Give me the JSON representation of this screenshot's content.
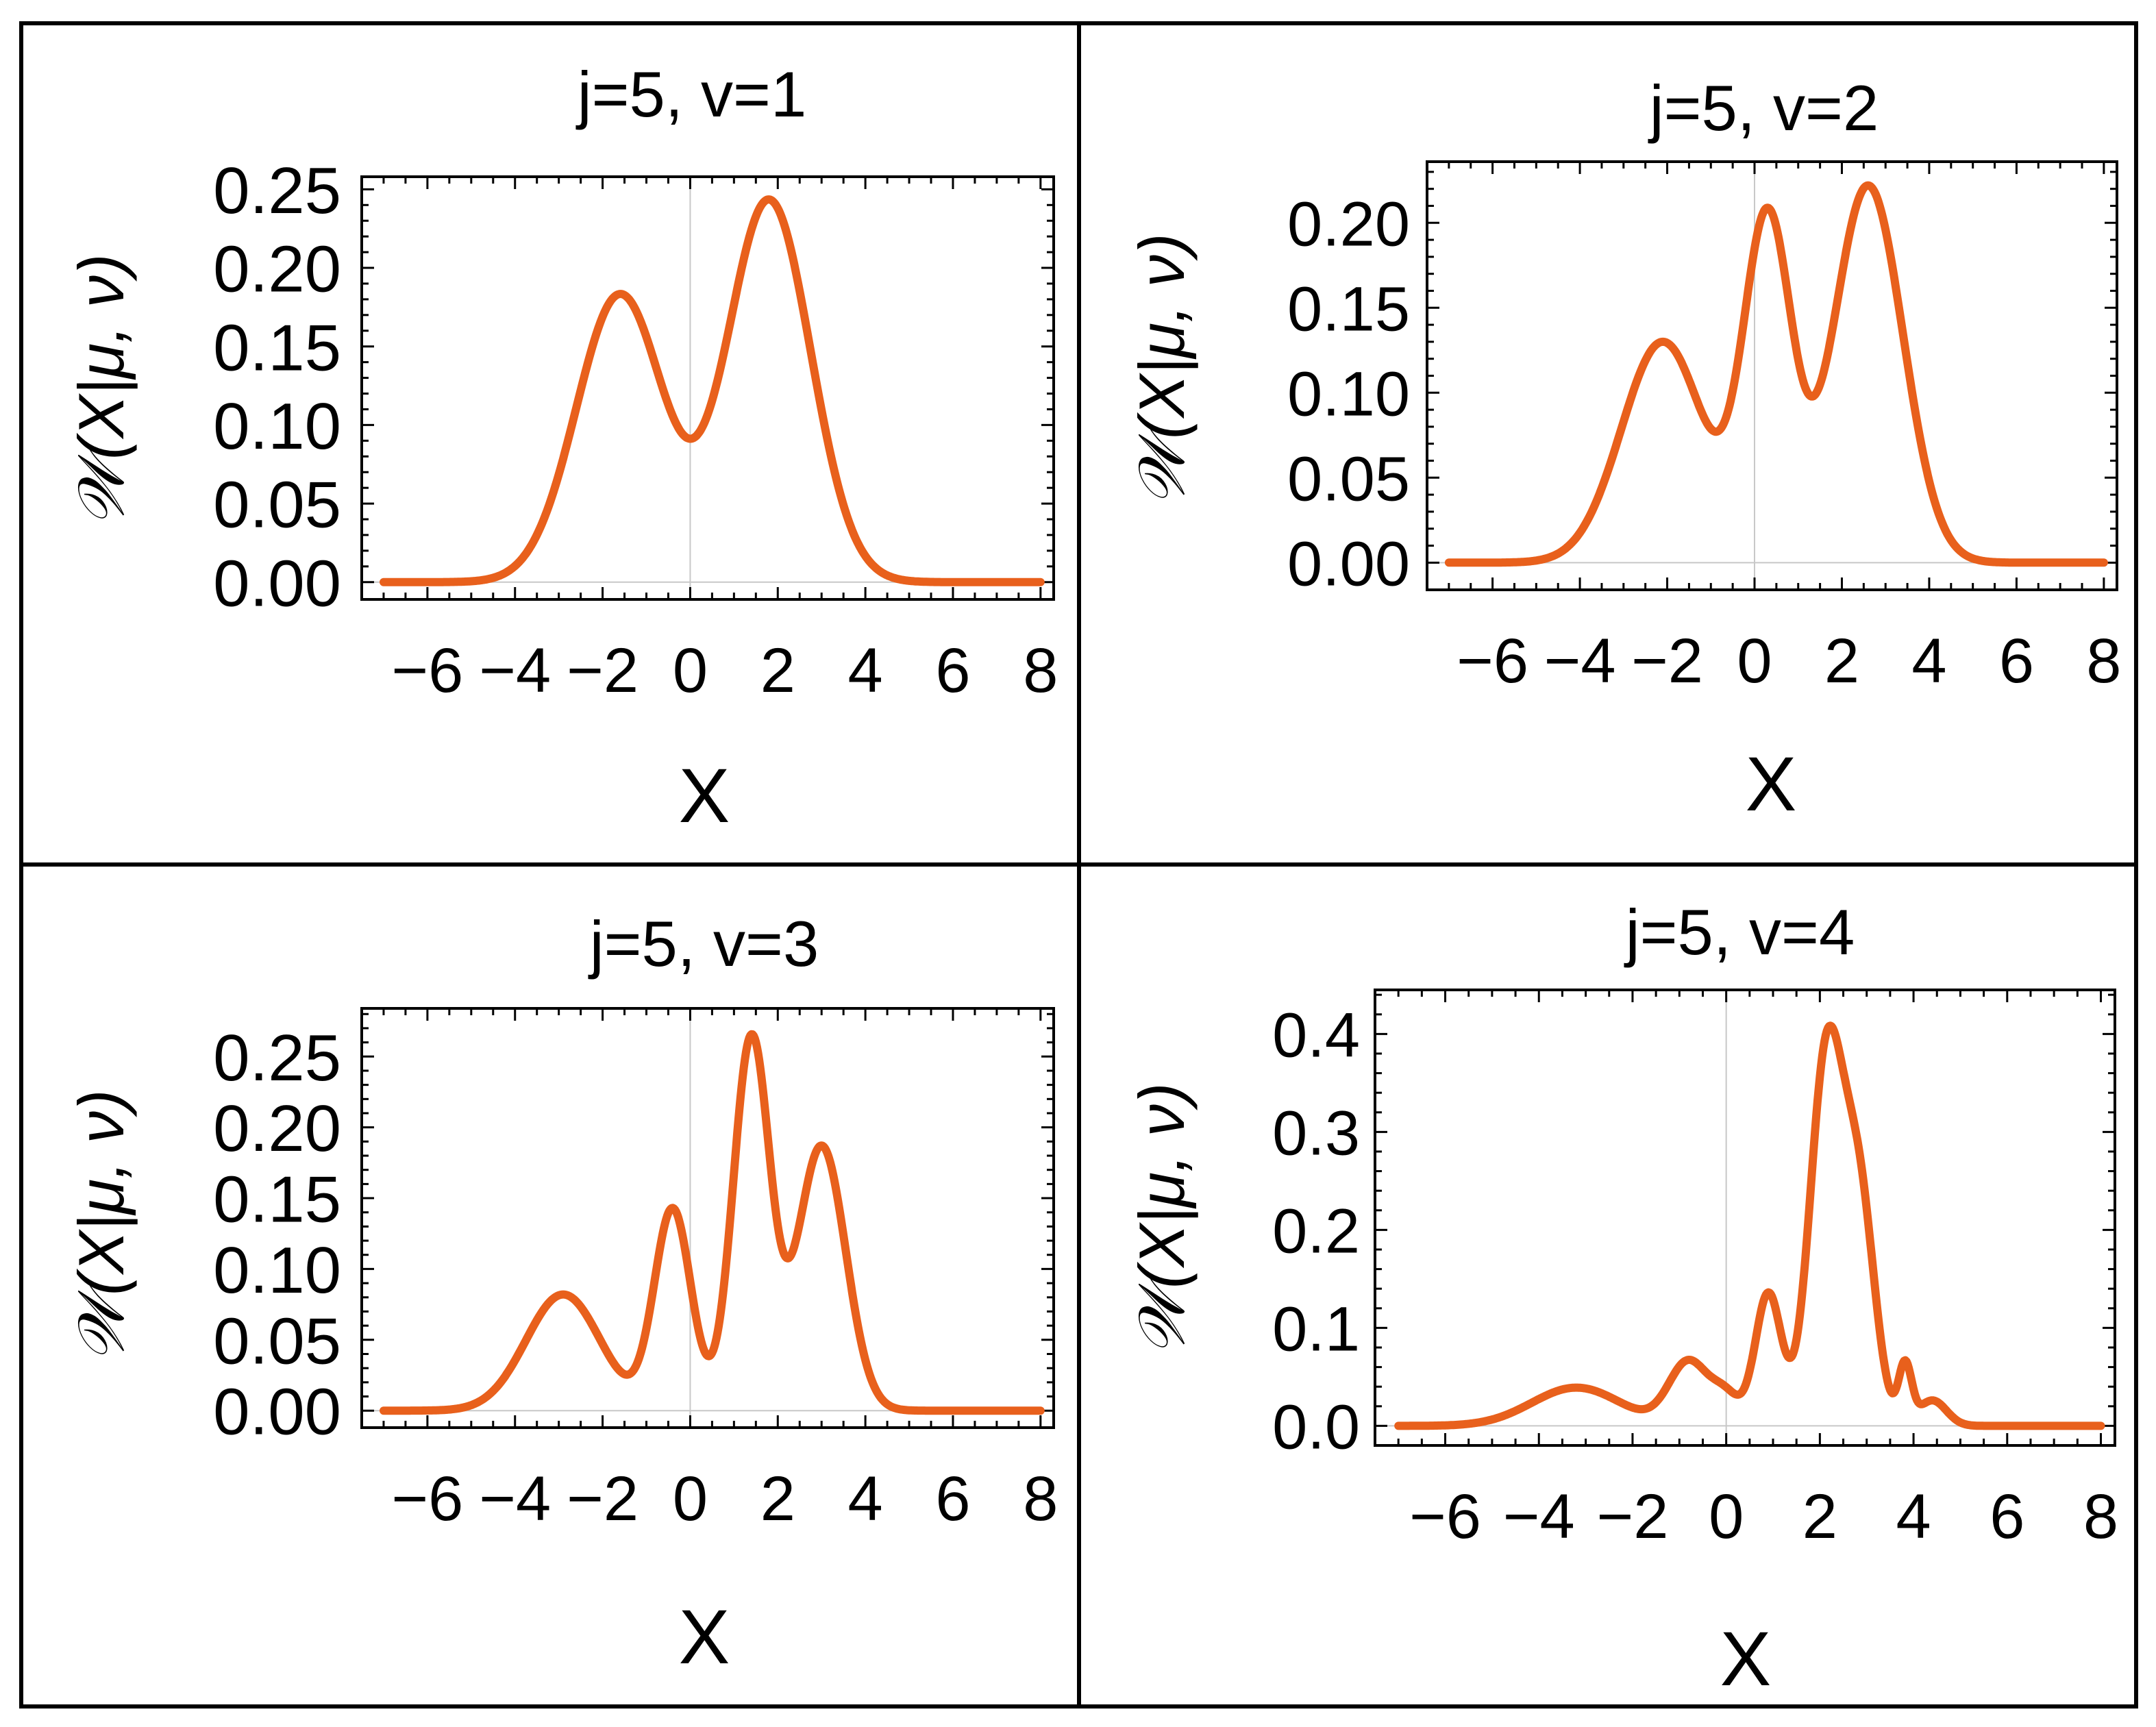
{
  "figure": {
    "curve_color": "#E8601C",
    "frame_color": "#000000",
    "axis_line_color": "#c8c8c8"
  },
  "chart_data": [
    {
      "type": "line",
      "title": "j=5, v=1",
      "xlabel": "X",
      "ylabel": "𝒲(X|μ, ν)",
      "xlim": [
        -7.5,
        8.3
      ],
      "ylim": [
        -0.011,
        0.258
      ],
      "xticks": [
        -6,
        -4,
        -2,
        0,
        2,
        4,
        6,
        8
      ],
      "xtick_labels": [
        "−6",
        "−4",
        "−2",
        "0",
        "2",
        "4",
        "6",
        "8"
      ],
      "yticks": [
        0.0,
        0.05,
        0.1,
        0.15,
        0.2,
        0.25
      ],
      "ytick_labels": [
        "0.00",
        "0.05",
        "0.10",
        "0.15",
        "0.20",
        "0.25"
      ],
      "x_range": [
        -7,
        8
      ],
      "series": [
        {
          "name": "W",
          "components": [
            {
              "amp": 0.183,
              "mu": -1.6,
              "sigma": 1.0
            },
            {
              "amp": 0.243,
              "mu": 1.8,
              "sigma": 0.95
            }
          ]
        }
      ]
    },
    {
      "type": "line",
      "title": "j=5, v=2",
      "xlabel": "X",
      "ylabel": "𝒲(X|μ, ν)",
      "xlim": [
        -7.5,
        8.3
      ],
      "ylim": [
        -0.016,
        0.236
      ],
      "xticks": [
        -6,
        -4,
        -2,
        0,
        2,
        4,
        6,
        8
      ],
      "xtick_labels": [
        "−6",
        "−4",
        "−2",
        "0",
        "2",
        "4",
        "6",
        "8"
      ],
      "yticks": [
        0.0,
        0.05,
        0.1,
        0.15,
        0.2
      ],
      "ytick_labels": [
        "0.00",
        "0.05",
        "0.10",
        "0.15",
        "0.20"
      ],
      "x_range": [
        -7,
        8
      ],
      "series": [
        {
          "name": "W",
          "components": [
            {
              "amp": 0.13,
              "mu": -2.1,
              "sigma": 0.95
            },
            {
              "amp": 0.2,
              "mu": 0.3,
              "sigma": 0.55
            },
            {
              "amp": 0.222,
              "mu": 2.6,
              "sigma": 0.8
            }
          ]
        }
      ]
    },
    {
      "type": "line",
      "title": "j=5, v=3",
      "xlabel": "X",
      "ylabel": "𝒲(X|μ, ν)",
      "xlim": [
        -7.5,
        8.3
      ],
      "ylim": [
        -0.012,
        0.284
      ],
      "xticks": [
        -6,
        -4,
        -2,
        0,
        2,
        4,
        6,
        8
      ],
      "xtick_labels": [
        "−6",
        "−4",
        "−2",
        "0",
        "2",
        "4",
        "6",
        "8"
      ],
      "yticks": [
        0.0,
        0.05,
        0.1,
        0.15,
        0.2,
        0.25
      ],
      "ytick_labels": [
        "0.00",
        "0.05",
        "0.10",
        "0.15",
        "0.20",
        "0.25"
      ],
      "x_range": [
        -7,
        8
      ],
      "series": [
        {
          "name": "W",
          "components": [
            {
              "amp": 0.082,
              "mu": -2.9,
              "sigma": 0.85
            },
            {
              "amp": 0.142,
              "mu": -0.4,
              "sigma": 0.42
            },
            {
              "amp": 0.263,
              "mu": 1.4,
              "sigma": 0.42
            },
            {
              "amp": 0.187,
              "mu": 3.0,
              "sigma": 0.55
            }
          ]
        }
      ]
    },
    {
      "type": "line",
      "title": "j=5, v=4",
      "xlabel": "X",
      "ylabel": "𝒲(X|μ, ν)",
      "xlim": [
        -7.5,
        8.3
      ],
      "ylim": [
        -0.02,
        0.445
      ],
      "xticks": [
        -6,
        -4,
        -2,
        0,
        2,
        4,
        6,
        8
      ],
      "xtick_labels": [
        "−6",
        "−4",
        "−2",
        "0",
        "2",
        "4",
        "6",
        "8"
      ],
      "yticks": [
        0.0,
        0.1,
        0.2,
        0.3,
        0.4
      ],
      "ytick_labels": [
        "0.0",
        "0.1",
        "0.2",
        "0.3",
        "0.4"
      ],
      "x_range": [
        -7,
        8
      ],
      "series": [
        {
          "name": "W",
          "components": [
            {
              "amp": 0.039,
              "mu": -3.2,
              "sigma": 0.95
            },
            {
              "amp": 0.065,
              "mu": -0.8,
              "sigma": 0.42
            },
            {
              "amp": 0.028,
              "mu": 0.0,
              "sigma": 0.3
            },
            {
              "amp": 0.135,
              "mu": 0.9,
              "sigma": 0.28
            },
            {
              "amp": 0.38,
              "mu": 2.15,
              "sigma": 0.36
            },
            {
              "amp": 0.22,
              "mu": 2.85,
              "sigma": 0.33
            },
            {
              "amp": 0.06,
              "mu": 3.82,
              "sigma": 0.14
            },
            {
              "amp": 0.026,
              "mu": 4.4,
              "sigma": 0.3
            }
          ]
        }
      ]
    }
  ]
}
